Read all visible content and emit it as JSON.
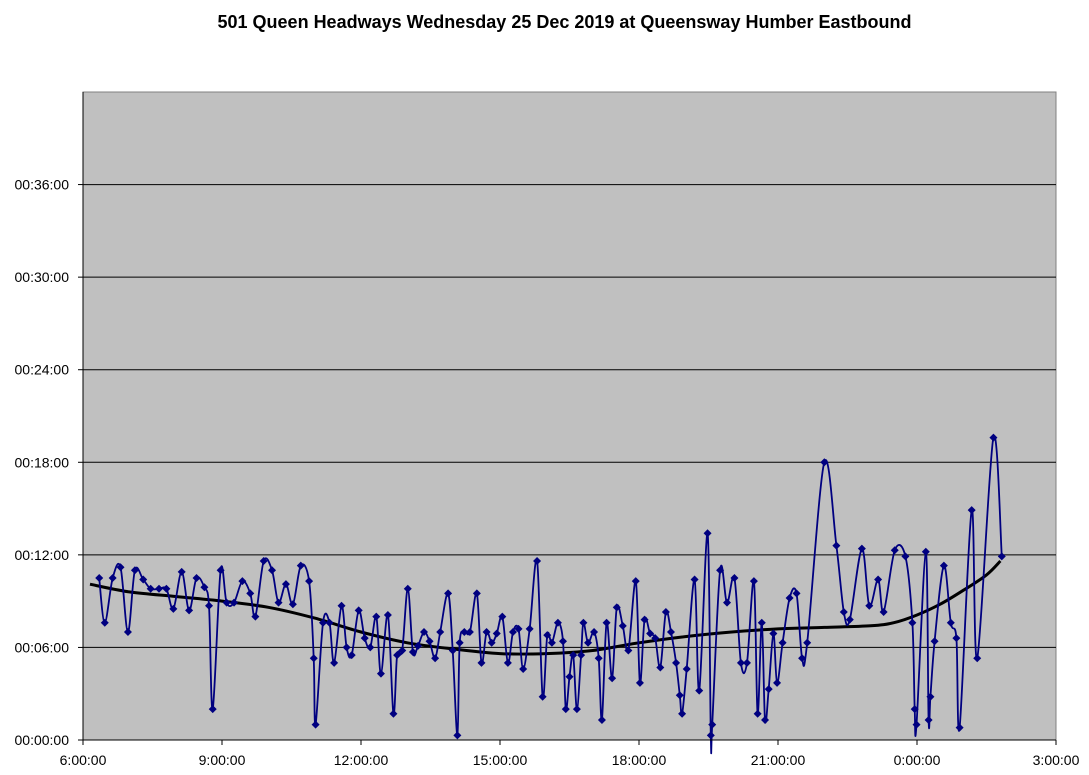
{
  "chart_data": {
    "type": "line",
    "title": "501 Queen Headways Wednesday 25 Dec 2019 at Queensway Humber Eastbound",
    "xlabel": "",
    "ylabel": "",
    "x_unit": "hours since 0:00 on the day (values past 24 are after midnight)",
    "y_unit": "minutes",
    "xlim": [
      6,
      27
    ],
    "ylim": [
      0,
      42
    ],
    "x_ticks": [
      {
        "value": 6,
        "label": "6:00:00"
      },
      {
        "value": 9,
        "label": "9:00:00"
      },
      {
        "value": 12,
        "label": "12:00:00"
      },
      {
        "value": 15,
        "label": "15:00:00"
      },
      {
        "value": 18,
        "label": "18:00:00"
      },
      {
        "value": 21,
        "label": "21:00:00"
      },
      {
        "value": 24,
        "label": "0:00:00"
      },
      {
        "value": 27,
        "label": "3:00:00"
      }
    ],
    "y_ticks": [
      {
        "value": 0,
        "label": "00:00:00"
      },
      {
        "value": 6,
        "label": "00:06:00"
      },
      {
        "value": 12,
        "label": "00:12:00"
      },
      {
        "value": 18,
        "label": "00:18:00"
      },
      {
        "value": 24,
        "label": "00:24:00"
      },
      {
        "value": 30,
        "label": "00:30:00"
      },
      {
        "value": 36,
        "label": "00:36:00"
      }
    ],
    "grid": "horizontal",
    "legend": "none",
    "colors": {
      "plot_bg": "#c0c0c0",
      "series": "#000080",
      "trend": "#000000",
      "grid": "#000000"
    },
    "series": [
      {
        "marker": "diamond",
        "points": [
          [
            6.35,
            10.5
          ],
          [
            6.47,
            7.6
          ],
          [
            6.64,
            10.5
          ],
          [
            6.81,
            11.2
          ],
          [
            6.97,
            7.0
          ],
          [
            7.12,
            11.0
          ],
          [
            7.3,
            10.4
          ],
          [
            7.46,
            9.8
          ],
          [
            7.64,
            9.8
          ],
          [
            7.8,
            9.8
          ],
          [
            7.95,
            8.5
          ],
          [
            8.13,
            10.9
          ],
          [
            8.29,
            8.4
          ],
          [
            8.45,
            10.5
          ],
          [
            8.62,
            9.9
          ],
          [
            8.72,
            8.7
          ],
          [
            8.8,
            2.0
          ],
          [
            8.97,
            11.0
          ],
          [
            9.1,
            8.9
          ],
          [
            9.26,
            8.9
          ],
          [
            9.44,
            10.3
          ],
          [
            9.61,
            9.5
          ],
          [
            9.72,
            8.0
          ],
          [
            9.9,
            11.6
          ],
          [
            10.08,
            11.0
          ],
          [
            10.22,
            8.9
          ],
          [
            10.38,
            10.1
          ],
          [
            10.53,
            8.8
          ],
          [
            10.7,
            11.3
          ],
          [
            10.88,
            10.3
          ],
          [
            10.98,
            5.3
          ],
          [
            11.02,
            1.0
          ],
          [
            11.18,
            7.6
          ],
          [
            11.32,
            7.6
          ],
          [
            11.42,
            5.0
          ],
          [
            11.58,
            8.7
          ],
          [
            11.69,
            6.0
          ],
          [
            11.8,
            5.5
          ],
          [
            11.95,
            8.4
          ],
          [
            12.08,
            6.6
          ],
          [
            12.2,
            6.0
          ],
          [
            12.33,
            8.0
          ],
          [
            12.43,
            4.3
          ],
          [
            12.58,
            8.1
          ],
          [
            12.7,
            1.7
          ],
          [
            12.78,
            5.5
          ],
          [
            12.89,
            5.8
          ],
          [
            13.01,
            9.8
          ],
          [
            13.12,
            5.7
          ],
          [
            13.23,
            6.1
          ],
          [
            13.36,
            7.0
          ],
          [
            13.48,
            6.4
          ],
          [
            13.6,
            5.3
          ],
          [
            13.71,
            7.0
          ],
          [
            13.88,
            9.5
          ],
          [
            13.98,
            5.8
          ],
          [
            14.08,
            0.3
          ],
          [
            14.13,
            6.3
          ],
          [
            14.23,
            7.0
          ],
          [
            14.35,
            7.0
          ],
          [
            14.5,
            9.5
          ],
          [
            14.6,
            5.0
          ],
          [
            14.71,
            7.0
          ],
          [
            14.82,
            6.3
          ],
          [
            14.93,
            6.9
          ],
          [
            15.05,
            8.0
          ],
          [
            15.17,
            5.0
          ],
          [
            15.28,
            7.0
          ],
          [
            15.4,
            7.2
          ],
          [
            15.5,
            4.6
          ],
          [
            15.64,
            7.2
          ],
          [
            15.8,
            11.6
          ],
          [
            15.92,
            2.8
          ],
          [
            16.02,
            6.8
          ],
          [
            16.12,
            6.3
          ],
          [
            16.25,
            7.6
          ],
          [
            16.36,
            6.4
          ],
          [
            16.42,
            2.0
          ],
          [
            16.5,
            4.1
          ],
          [
            16.58,
            5.5
          ],
          [
            16.66,
            2.0
          ],
          [
            16.75,
            5.5
          ],
          [
            16.8,
            7.6
          ],
          [
            16.9,
            6.3
          ],
          [
            17.03,
            7.0
          ],
          [
            17.13,
            5.3
          ],
          [
            17.2,
            1.3
          ],
          [
            17.3,
            7.6
          ],
          [
            17.42,
            4.0
          ],
          [
            17.52,
            8.6
          ],
          [
            17.65,
            7.4
          ],
          [
            17.77,
            5.8
          ],
          [
            17.93,
            10.3
          ],
          [
            18.02,
            3.7
          ],
          [
            18.12,
            7.8
          ],
          [
            18.24,
            6.9
          ],
          [
            18.35,
            6.6
          ],
          [
            18.46,
            4.7
          ],
          [
            18.58,
            8.3
          ],
          [
            18.69,
            7.0
          ],
          [
            18.8,
            5.0
          ],
          [
            18.88,
            2.9
          ],
          [
            18.93,
            1.7
          ],
          [
            19.03,
            4.6
          ],
          [
            19.2,
            10.4
          ],
          [
            19.3,
            3.2
          ],
          [
            19.48,
            13.4
          ],
          [
            19.55,
            0.3
          ],
          [
            19.58,
            1.0
          ],
          [
            19.75,
            11.0
          ],
          [
            19.9,
            8.9
          ],
          [
            20.06,
            10.5
          ],
          [
            20.2,
            5.0
          ],
          [
            20.33,
            5.0
          ],
          [
            20.48,
            10.3
          ],
          [
            20.56,
            1.7
          ],
          [
            20.65,
            7.6
          ],
          [
            20.72,
            1.3
          ],
          [
            20.8,
            3.3
          ],
          [
            20.9,
            6.9
          ],
          [
            20.98,
            3.7
          ],
          [
            21.1,
            6.3
          ],
          [
            21.25,
            9.2
          ],
          [
            21.4,
            9.5
          ],
          [
            21.52,
            5.3
          ],
          [
            21.63,
            6.3
          ],
          [
            22.0,
            18.0
          ],
          [
            22.26,
            12.6
          ],
          [
            22.42,
            8.3
          ],
          [
            22.55,
            7.8
          ],
          [
            22.81,
            12.4
          ],
          [
            22.97,
            8.7
          ],
          [
            23.16,
            10.4
          ],
          [
            23.28,
            8.3
          ],
          [
            23.52,
            12.3
          ],
          [
            23.75,
            11.9
          ],
          [
            23.9,
            7.6
          ],
          [
            23.95,
            2.0
          ],
          [
            23.99,
            1.0
          ],
          [
            24.19,
            12.2
          ],
          [
            24.25,
            1.3
          ],
          [
            24.29,
            2.8
          ],
          [
            24.38,
            6.4
          ],
          [
            24.58,
            11.3
          ],
          [
            24.73,
            7.6
          ],
          [
            24.85,
            6.6
          ],
          [
            24.92,
            0.8
          ],
          [
            25.18,
            14.9
          ],
          [
            25.3,
            5.3
          ],
          [
            25.65,
            19.6
          ],
          [
            25.83,
            11.9
          ]
        ]
      }
    ],
    "trendline": [
      [
        6.15,
        10.1
      ],
      [
        7.0,
        9.6
      ],
      [
        8.0,
        9.3
      ],
      [
        9.0,
        9.0
      ],
      [
        10.0,
        8.6
      ],
      [
        11.0,
        7.9
      ],
      [
        12.0,
        7.0
      ],
      [
        13.0,
        6.3
      ],
      [
        14.0,
        5.9
      ],
      [
        15.0,
        5.6
      ],
      [
        16.0,
        5.6
      ],
      [
        17.0,
        5.8
      ],
      [
        18.0,
        6.3
      ],
      [
        19.0,
        6.7
      ],
      [
        20.0,
        7.0
      ],
      [
        21.0,
        7.2
      ],
      [
        22.0,
        7.3
      ],
      [
        23.0,
        7.4
      ],
      [
        23.5,
        7.6
      ],
      [
        24.0,
        8.1
      ],
      [
        24.5,
        8.8
      ],
      [
        25.0,
        9.7
      ],
      [
        25.5,
        10.7
      ],
      [
        25.8,
        11.6
      ]
    ]
  }
}
